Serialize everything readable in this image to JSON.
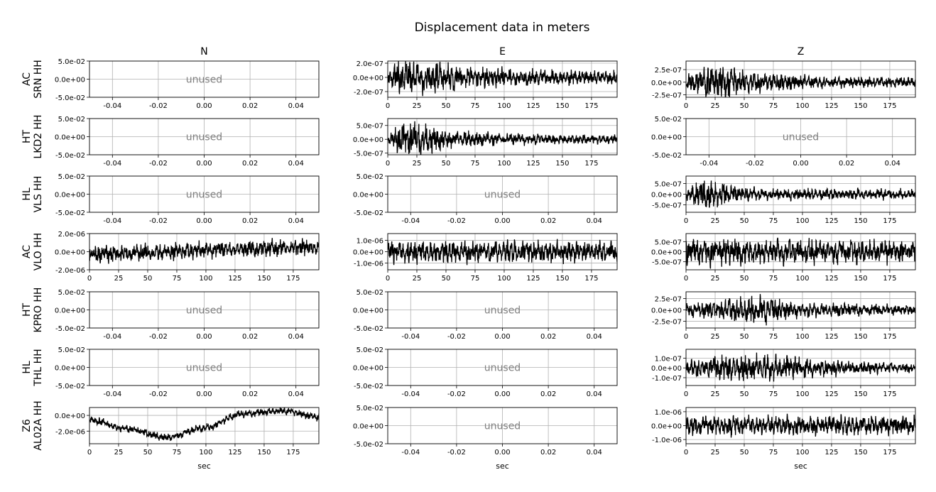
{
  "figure": {
    "title": "Displacement data in meters",
    "columns": [
      "N",
      "E",
      "Z"
    ],
    "rows": [
      {
        "net": "AC",
        "sta": "SRN HH"
      },
      {
        "net": "HT",
        "sta": "LKD2 HH"
      },
      {
        "net": "HL",
        "sta": "VLS HH"
      },
      {
        "net": "AC",
        "sta": "VLO HH"
      },
      {
        "net": "HT",
        "sta": "KPRO HH"
      },
      {
        "net": "HL",
        "sta": "THL HH"
      },
      {
        "net": "Z6",
        "sta": "AL02A HH"
      }
    ],
    "xlabel": "sec",
    "unused_label": "unused",
    "unused_xticks": [
      "-0.04",
      "-0.02",
      "0.00",
      "0.02",
      "0.04"
    ],
    "unused_yticks": [
      "5.0e-02",
      "0.0e+00",
      "-5.0e-02"
    ],
    "time_xticks": [
      "0",
      "25",
      "50",
      "75",
      "100",
      "125",
      "150",
      "175"
    ]
  },
  "chart_data": {
    "type": "line",
    "title": "Displacement data in meters",
    "xlabel": "sec",
    "x_range": [
      0,
      197
    ],
    "unused_panel_limits": {
      "x": [
        -0.05,
        0.05
      ],
      "y": [
        -0.05,
        0.05
      ]
    },
    "panels": [
      {
        "row": 0,
        "column": "N",
        "used": false
      },
      {
        "row": 0,
        "column": "E",
        "used": true,
        "ylim": [
          -2.8e-07,
          2.3e-07
        ],
        "yticks": [
          "2.0e-07",
          "0.0e+00",
          "-2.0e-07"
        ],
        "amplitude": 1.2e-07,
        "trend": [
          0,
          0,
          0,
          0
        ],
        "envelope": [
          [
            0,
            0.4
          ],
          [
            10,
            1.4
          ],
          [
            30,
            1.3
          ],
          [
            60,
            0.9
          ],
          [
            120,
            0.6
          ],
          [
            197,
            0.5
          ]
        ]
      },
      {
        "row": 0,
        "column": "Z",
        "used": true,
        "ylim": [
          -3e-07,
          4.2e-07
        ],
        "yticks": [
          "2.5e-07",
          "0.0e+00",
          "-2.5e-07"
        ],
        "amplitude": 1.5e-07,
        "trend": [
          0,
          0,
          0,
          0
        ],
        "envelope": [
          [
            0,
            0.6
          ],
          [
            20,
            1.4
          ],
          [
            30,
            1.5
          ],
          [
            60,
            0.9
          ],
          [
            120,
            0.5
          ],
          [
            197,
            0.4
          ]
        ]
      },
      {
        "row": 1,
        "column": "N",
        "used": false
      },
      {
        "row": 1,
        "column": "E",
        "used": true,
        "ylim": [
          -5.6e-07,
          7.5e-07
        ],
        "yticks": [
          "5.0e-07",
          "0.0e+00",
          "-5.0e-07"
        ],
        "amplitude": 2.6e-07,
        "trend": [
          0,
          0,
          0,
          0
        ],
        "envelope": [
          [
            0,
            0.3
          ],
          [
            12,
            1.6
          ],
          [
            25,
            1.5
          ],
          [
            50,
            0.8
          ],
          [
            100,
            0.5
          ],
          [
            197,
            0.4
          ]
        ]
      },
      {
        "row": 1,
        "column": "Z",
        "used": false
      },
      {
        "row": 2,
        "column": "N",
        "used": false
      },
      {
        "row": 2,
        "column": "E",
        "used": false
      },
      {
        "row": 2,
        "column": "Z",
        "used": true,
        "ylim": [
          -8.5e-07,
          8.5e-07
        ],
        "yticks": [
          "5.0e-07",
          "0.0e+00",
          "-5.0e-07"
        ],
        "amplitude": 3e-07,
        "trend": [
          0,
          0,
          0,
          0
        ],
        "envelope": [
          [
            0,
            0.6
          ],
          [
            15,
            1.7
          ],
          [
            30,
            1.2
          ],
          [
            60,
            0.6
          ],
          [
            197,
            0.5
          ]
        ]
      },
      {
        "row": 3,
        "column": "N",
        "used": true,
        "ylim": [
          -2e-06,
          2e-06
        ],
        "yticks": [
          "2.0e-06",
          "0.0e+00",
          "-2.0e-06"
        ],
        "amplitude": 6e-07,
        "trend": [
          -3e-07,
          0,
          3e-07,
          5e-07
        ],
        "envelope": [
          [
            0,
            1.0
          ],
          [
            197,
            1.0
          ]
        ]
      },
      {
        "row": 3,
        "column": "E",
        "used": true,
        "ylim": [
          -1.6e-06,
          1.6e-06
        ],
        "yticks": [
          "1.0e-06",
          "0.0e+00",
          "-1.0e-06"
        ],
        "amplitude": 6e-07,
        "trend": [
          0,
          0,
          0,
          0
        ],
        "envelope": [
          [
            0,
            1.1
          ],
          [
            197,
            1.0
          ]
        ]
      },
      {
        "row": 3,
        "column": "Z",
        "used": true,
        "ylim": [
          -9e-07,
          9e-07
        ],
        "yticks": [
          "5.0e-07",
          "0.0e+00",
          "-5.0e-07"
        ],
        "amplitude": 4e-07,
        "trend": [
          0,
          0,
          0,
          0
        ],
        "envelope": [
          [
            0,
            1.1
          ],
          [
            197,
            0.9
          ]
        ]
      },
      {
        "row": 4,
        "column": "N",
        "used": false
      },
      {
        "row": 4,
        "column": "E",
        "used": false
      },
      {
        "row": 4,
        "column": "Z",
        "used": true,
        "ylim": [
          -4e-07,
          4e-07
        ],
        "yticks": [
          "2.5e-07",
          "0.0e+00",
          "-2.5e-07"
        ],
        "amplitude": 1.3e-07,
        "trend": [
          0,
          0,
          0,
          0
        ],
        "envelope": [
          [
            0,
            0.7
          ],
          [
            45,
            1.4
          ],
          [
            70,
            1.5
          ],
          [
            100,
            0.8
          ],
          [
            197,
            0.5
          ]
        ]
      },
      {
        "row": 5,
        "column": "N",
        "used": false
      },
      {
        "row": 5,
        "column": "E",
        "used": false
      },
      {
        "row": 5,
        "column": "Z",
        "used": true,
        "ylim": [
          -1.8e-07,
          1.9e-07
        ],
        "yticks": [
          "1.0e-07",
          "0.0e+00",
          "-1.0e-07"
        ],
        "amplitude": 7e-08,
        "trend": [
          0,
          0,
          0,
          0
        ],
        "envelope": [
          [
            0,
            0.7
          ],
          [
            40,
            1.3
          ],
          [
            70,
            1.2
          ],
          [
            120,
            0.8
          ],
          [
            197,
            0.4
          ]
        ]
      },
      {
        "row": 6,
        "column": "N",
        "used": true,
        "ylim": [
          -3.6e-06,
          1e-06
        ],
        "yticks": [
          "0.0e+00",
          "-2.0e-06"
        ],
        "amplitude": 3e-07,
        "trend": [
          -6e-07,
          -1.7e-06,
          -2.8e-06,
          -1.6e-06,
          2e-07,
          6e-07,
          -2e-07
        ],
        "envelope": [
          [
            0,
            1.0
          ],
          [
            197,
            1.0
          ]
        ]
      },
      {
        "row": 6,
        "column": "E",
        "used": false
      },
      {
        "row": 6,
        "column": "Z",
        "used": true,
        "ylim": [
          -1.3e-06,
          1.3e-06
        ],
        "yticks": [
          "1.0e-06",
          "0.0e+00",
          "-1.0e-06"
        ],
        "amplitude": 4.5e-07,
        "trend": [
          0,
          0,
          0,
          0
        ],
        "envelope": [
          [
            0,
            1.0
          ],
          [
            197,
            1.0
          ]
        ]
      }
    ]
  }
}
